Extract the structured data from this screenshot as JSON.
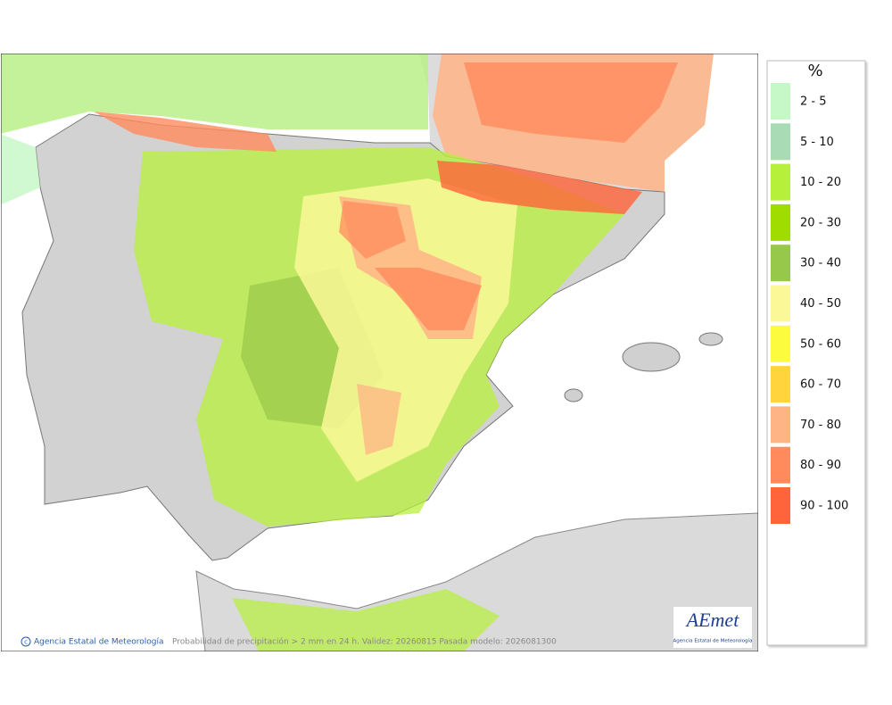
{
  "legend": {
    "title": "%",
    "items": [
      {
        "label": "2 - 5",
        "color": "#c6f7c6"
      },
      {
        "label": "5 - 10",
        "color": "#a9dcb4"
      },
      {
        "label": "10 - 20",
        "color": "#b7f03a"
      },
      {
        "label": "20 - 30",
        "color": "#a0dc00"
      },
      {
        "label": "30 - 40",
        "color": "#98c84a"
      },
      {
        "label": "40 - 50",
        "color": "#fbf898"
      },
      {
        "label": "50 - 60",
        "color": "#fdfb3e"
      },
      {
        "label": "60 - 70",
        "color": "#ffd43c"
      },
      {
        "label": "70 - 80",
        "color": "#ffb486"
      },
      {
        "label": "80 - 90",
        "color": "#ff8b5c"
      },
      {
        "label": "90 - 100",
        "color": "#ff643a"
      }
    ]
  },
  "footer": {
    "copyright": "Agencia Estatal de Meteorología",
    "caption": "Probabilidad de precipitación > 2 mm en 24 h. Validez: 20260815 Pasada modelo: 2026081300"
  },
  "logo": {
    "name": "AEmet",
    "subtitle": "Agencia Estatal de Meteorología"
  }
}
